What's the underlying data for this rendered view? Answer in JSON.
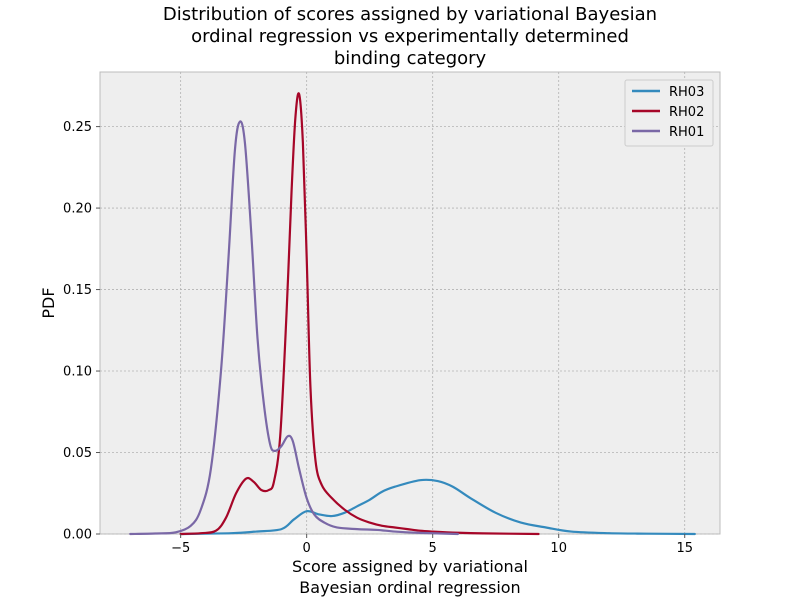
{
  "chart_data": {
    "type": "line",
    "title_lines": [
      "Distribution of scores assigned by variational Bayesian",
      "ordinal regression vs experimentally determined",
      "binding category"
    ],
    "xlabel_lines": [
      "Score assigned by variational",
      "Bayesian ordinal regression"
    ],
    "ylabel": "PDF",
    "xlim": [
      -8.2,
      16.4
    ],
    "ylim": [
      0,
      0.2835
    ],
    "xticks": [
      -5,
      0,
      5,
      10,
      15
    ],
    "xtick_labels": [
      "−5",
      "0",
      "5",
      "10",
      "15"
    ],
    "yticks": [
      0,
      0.05,
      0.1,
      0.15,
      0.2,
      0.25
    ],
    "ytick_labels": [
      "0.00",
      "0.05",
      "0.10",
      "0.15",
      "0.20",
      "0.25"
    ],
    "grid": true,
    "legend_position": "top-right",
    "background_color": "#eeeeee",
    "series": [
      {
        "name": "RH03",
        "color": "#348abd",
        "points": [
          [
            -5,
            0.0
          ],
          [
            -3,
            0.0005
          ],
          [
            -2,
            0.0015
          ],
          [
            -1,
            0.003
          ],
          [
            -0.5,
            0.009
          ],
          [
            0,
            0.014
          ],
          [
            0.5,
            0.012
          ],
          [
            1,
            0.011
          ],
          [
            1.5,
            0.013
          ],
          [
            2,
            0.017
          ],
          [
            2.5,
            0.021
          ],
          [
            3,
            0.026
          ],
          [
            3.5,
            0.029
          ],
          [
            4.5,
            0.033
          ],
          [
            5.2,
            0.0325
          ],
          [
            5.8,
            0.029
          ],
          [
            6.5,
            0.022
          ],
          [
            7.5,
            0.013
          ],
          [
            8.5,
            0.007
          ],
          [
            9.5,
            0.004
          ],
          [
            10.5,
            0.0015
          ],
          [
            12,
            0.0005
          ],
          [
            13.5,
            0.0002
          ],
          [
            15.4,
            0.0
          ]
        ]
      },
      {
        "name": "RH02",
        "color": "#a60628",
        "points": [
          [
            -5,
            0.0
          ],
          [
            -4.2,
            0.0005
          ],
          [
            -3.6,
            0.002
          ],
          [
            -3.2,
            0.01
          ],
          [
            -2.8,
            0.025
          ],
          [
            -2.4,
            0.034
          ],
          [
            -2.1,
            0.032
          ],
          [
            -1.8,
            0.027
          ],
          [
            -1.5,
            0.027
          ],
          [
            -1.3,
            0.032
          ],
          [
            -1.05,
            0.06
          ],
          [
            -0.8,
            0.135
          ],
          [
            -0.6,
            0.21
          ],
          [
            -0.45,
            0.255
          ],
          [
            -0.3,
            0.27
          ],
          [
            -0.15,
            0.24
          ],
          [
            0,
            0.17
          ],
          [
            0.15,
            0.09
          ],
          [
            0.35,
            0.045
          ],
          [
            0.6,
            0.03
          ],
          [
            1,
            0.022
          ],
          [
            1.5,
            0.015
          ],
          [
            2,
            0.01
          ],
          [
            2.5,
            0.007
          ],
          [
            3,
            0.005
          ],
          [
            3.5,
            0.004
          ],
          [
            4,
            0.003
          ],
          [
            4.5,
            0.002
          ],
          [
            5,
            0.0015
          ],
          [
            6,
            0.0008
          ],
          [
            7,
            0.0004
          ],
          [
            9.2,
            0.0
          ]
        ]
      },
      {
        "name": "RH01",
        "color": "#7a68a6",
        "points": [
          [
            -7,
            0.0
          ],
          [
            -6,
            0.0003
          ],
          [
            -5.2,
            0.001
          ],
          [
            -4.6,
            0.005
          ],
          [
            -4.2,
            0.015
          ],
          [
            -3.8,
            0.04
          ],
          [
            -3.4,
            0.1
          ],
          [
            -3.1,
            0.17
          ],
          [
            -2.85,
            0.235
          ],
          [
            -2.65,
            0.253
          ],
          [
            -2.45,
            0.24
          ],
          [
            -2.2,
            0.185
          ],
          [
            -1.95,
            0.12
          ],
          [
            -1.7,
            0.08
          ],
          [
            -1.45,
            0.055
          ],
          [
            -1.25,
            0.051
          ],
          [
            -1.0,
            0.054
          ],
          [
            -0.75,
            0.06
          ],
          [
            -0.55,
            0.057
          ],
          [
            -0.3,
            0.04
          ],
          [
            0,
            0.022
          ],
          [
            0.3,
            0.012
          ],
          [
            0.7,
            0.007
          ],
          [
            1.2,
            0.004
          ],
          [
            2,
            0.003
          ],
          [
            2.8,
            0.0025
          ],
          [
            3.5,
            0.0015
          ],
          [
            4.5,
            0.0007
          ],
          [
            6,
            0.0
          ]
        ]
      }
    ]
  }
}
